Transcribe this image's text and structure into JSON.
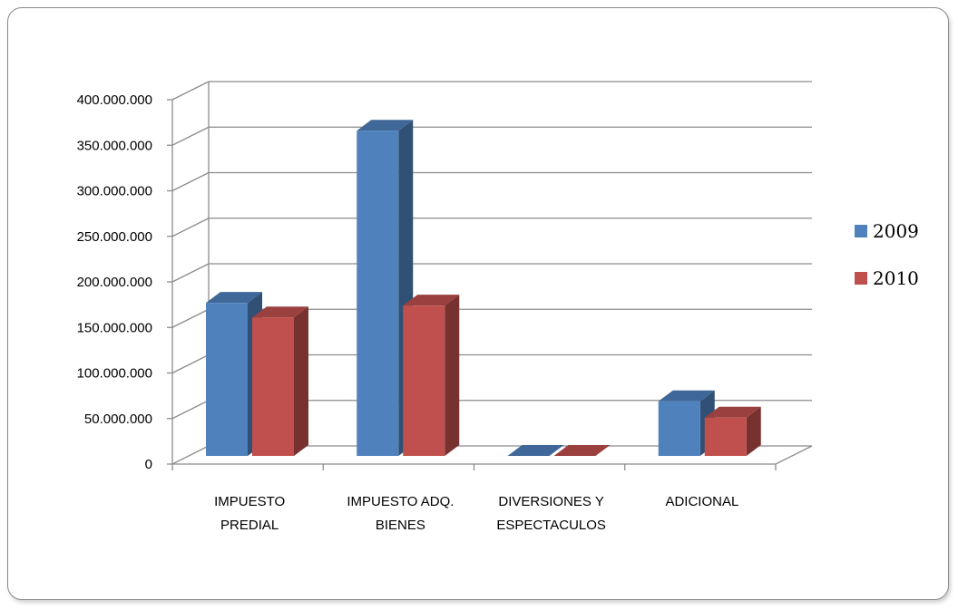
{
  "chart_data": {
    "type": "bar",
    "categories": [
      [
        "IMPUESTO",
        "PREDIAL"
      ],
      [
        "IMPUESTO ADQ.",
        "BIENES"
      ],
      [
        "DIVERSIONES Y",
        "ESPECTACULOS"
      ],
      [
        "ADICIONAL"
      ]
    ],
    "series": [
      {
        "name": "2009",
        "color": "#4f81bd",
        "values": [
          168000000,
          357000000,
          0,
          60000000
        ]
      },
      {
        "name": "2010",
        "color": "#c0504d",
        "values": [
          152000000,
          165000000,
          0,
          42000000
        ]
      }
    ],
    "y_ticks": [
      "0",
      "50.000.000",
      "100.000.000",
      "150.000.000",
      "200.000.000",
      "250.000.000",
      "300.000.000",
      "350.000.000",
      "400.000.000"
    ],
    "ylim": [
      0,
      400000000
    ],
    "grid": true,
    "legend": "right",
    "title": "",
    "xlabel": "",
    "ylabel": ""
  }
}
